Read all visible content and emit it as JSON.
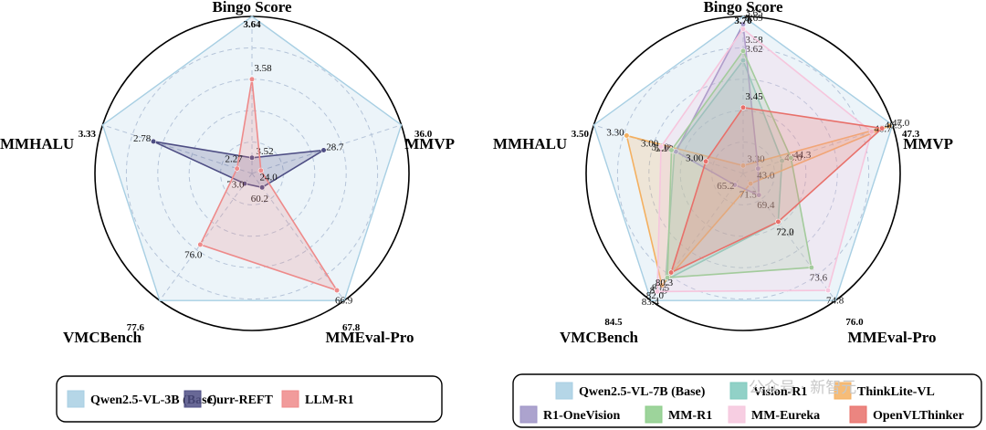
{
  "watermark": "公众号 · 新智元",
  "chart_data": [
    {
      "type": "radar",
      "axes": [
        "Bingo Score",
        "MMVP",
        "MMEval-Pro",
        "VMCBench",
        "MMHALU"
      ],
      "axis_max_labels": [
        "3.64",
        "36.0",
        "67.8",
        "77.6",
        "3.33"
      ],
      "grid": true,
      "legend_position": "bottom",
      "series": [
        {
          "name": "Qwen2.5-VL-3B (Base)",
          "color": "#a8cfe3",
          "fraction": [
            1.0,
            1.0,
            1.0,
            1.0,
            1.0
          ],
          "labels": []
        },
        {
          "name": "Curr-REFT",
          "color": "#4e4e84",
          "fraction": [
            0.1,
            0.48,
            0.11,
            0.08,
            0.66
          ],
          "labels": [
            "3.52",
            "28.7",
            "60.2",
            "73.0",
            "2.78"
          ]
        },
        {
          "name": "LLM-R1",
          "color": "#ee8a8a",
          "fraction": [
            0.6,
            0.06,
            0.92,
            0.56,
            0.1
          ],
          "labels": [
            "3.58",
            "24.0",
            "66.9",
            "76.0",
            "2.27"
          ]
        }
      ]
    },
    {
      "type": "radar",
      "axes": [
        "Bingo Score",
        "MMVP",
        "MMEval-Pro",
        "VMCBench",
        "MMHALU"
      ],
      "axis_max_labels": [
        "3.70",
        "47.3",
        "76.0",
        "84.5",
        "3.50"
      ],
      "grid": true,
      "legend_position": "bottom",
      "series": [
        {
          "name": "Qwen2.5-VL-7B (Base)",
          "color": "#a8cfe3",
          "fraction": [
            1.0,
            1.0,
            1.0,
            1.0,
            1.0
          ],
          "labels": []
        },
        {
          "name": "Vision-R1",
          "color": "#7ec9bd",
          "fraction": [
            0.72,
            0.26,
            0.38,
            0.84,
            0.46
          ],
          "labels": [
            "3.62",
            "44.0",
            "72.2",
            "81.5",
            "3.20"
          ]
        },
        {
          "name": "ThinkLite-VL",
          "color": "#f4b060",
          "fraction": [
            0.05,
            0.98,
            0.08,
            0.88,
            0.78
          ],
          "labels": [
            "3.30",
            "47.0",
            "71.5",
            "82.0",
            "3.30"
          ]
        },
        {
          "name": "R1-OneVision",
          "color": "#9d93c6",
          "fraction": [
            0.95,
            0.1,
            0.17,
            0.09,
            0.45
          ],
          "labels": [
            "3.65",
            "43.0",
            "69.4",
            "65.2",
            "3.10"
          ]
        },
        {
          "name": "MM-R1",
          "color": "#8ccd8a",
          "fraction": [
            0.78,
            0.32,
            0.74,
            0.82,
            0.48
          ],
          "labels": [
            "3.58",
            "44.3",
            "73.6",
            "80.5",
            "3.10"
          ]
        },
        {
          "name": "MM-Eureka",
          "color": "#f6c6dd",
          "fraction": [
            0.92,
            0.86,
            0.92,
            0.93,
            0.55
          ],
          "labels": [
            "3.69",
            "46.7",
            "74.8",
            "83.4",
            "3.00"
          ]
        },
        {
          "name": "OpenVLThinker",
          "color": "#e8706a",
          "fraction": [
            0.42,
            0.93,
            0.38,
            0.78,
            0.25
          ],
          "labels": [
            "3.45",
            "46.5",
            "72.0",
            "80.3",
            "3.00"
          ]
        }
      ]
    }
  ]
}
